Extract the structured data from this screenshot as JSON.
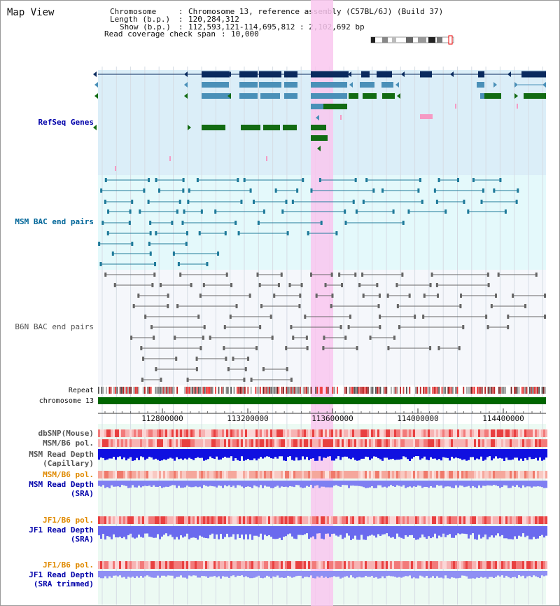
{
  "title": "Map View",
  "header": {
    "chromosome_label": "Chromosome",
    "chromosome_value": "Chromosome 13, reference assembly (C57BL/6J) (Build 37)",
    "length_label": "Length (b.p.)",
    "length_value": "120,284,312",
    "show_label": "Show (b.p.)",
    "show_value": "112,593,121-114,695,812 : 2,102,692 bp",
    "span_label": "Read coverage check span",
    "span_value": "10,000"
  },
  "tracks": {
    "refseq": "RefSeq Genes",
    "msm_bac": "MSM BAC end pairs",
    "b6n_bac": "B6N BAC end pairs",
    "repeat": "Repeat",
    "chromosome": "chromosome 13",
    "dbsnp": "dbSNP(Mouse)",
    "msm_b6_pol": "MSM/B6 pol.",
    "msm_depth_cap_1": "MSM Read Depth",
    "msm_depth_cap_2": "(Capillary)",
    "msm_b6_pol_2": "MSM/B6 pol.",
    "msm_depth_sra_1": "MSM Read Depth",
    "msm_depth_sra_2": "(SRA)",
    "jf1_b6_pol": "JF1/B6 pol.",
    "jf1_depth_sra_1": "JF1 Read Depth",
    "jf1_depth_sra_2": "(SRA)",
    "jf1_b6_pol_2": "JF1/B6 pol.",
    "jf1_depth_trim_1": "JF1 Read Depth",
    "jf1_depth_trim_2": "(SRA trimmed)"
  },
  "ruler": {
    "ticks": [
      "112800000",
      "113200000",
      "113600000",
      "114000000",
      "114400000"
    ]
  },
  "colors": {
    "refseq_label": "#0000aa",
    "msm_label": "#006699",
    "b6n_label": "#555555",
    "orange_label": "#e08a00",
    "blue_label": "#0000aa",
    "highlight": "#f9c7ef",
    "refseq_bg": "#dbeef8",
    "msm_bg": "#e4f9fb",
    "chromosome_bar": "#006600"
  }
}
